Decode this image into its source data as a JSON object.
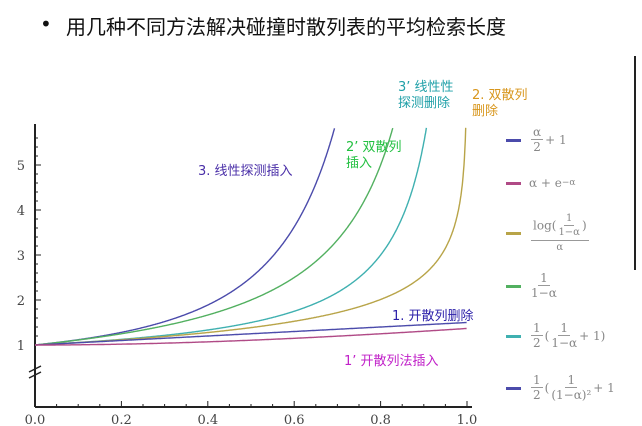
{
  "slide": {
    "bullet": "•",
    "heading": "用几种不同方法解决碰撞时散列表的平均检索长度"
  },
  "chart_data": {
    "type": "line",
    "title": "",
    "xlabel": "",
    "ylabel": "",
    "xlim": [
      0,
      1.0
    ],
    "ylim": [
      1,
      5.9
    ],
    "x_ticks": [
      "0.0",
      "0.2",
      "0.4",
      "0.6",
      "0.8",
      "1.0"
    ],
    "y_ticks": [
      "1",
      "2",
      "3",
      "4",
      "5"
    ],
    "series": [
      {
        "name": "3. 线性探测插入",
        "formula": "(1/2)(1/(1-α)^2+1)",
        "color": "#4b4bab"
      },
      {
        "name": "3’ 线性探测删除",
        "formula": "(1/2)(1/(1-α)+1)",
        "color": "#3fb0b0"
      },
      {
        "name": "2’ 双散列插入",
        "formula": "1/(1-α)",
        "color": "#52b060"
      },
      {
        "name": "2. 双散列删除",
        "formula": "log(1/(1-α))/α",
        "color": "#b8a448"
      },
      {
        "name": "1. 开散列删除",
        "formula": "α/2+1",
        "color": "#4b4bab"
      },
      {
        "name": "1’ 开散列法插入",
        "formula": "α+e^-α",
        "color": "#b04a86"
      }
    ],
    "legend": "right",
    "legend_entries": [
      {
        "color": "#4b4bab",
        "num": "α",
        "den": "2",
        "rest": "+ 1"
      },
      {
        "color": "#b04a86",
        "text": "α + e",
        "sup": "−α"
      },
      {
        "color": "#b8a448",
        "text": "log",
        "inner_num": "1",
        "inner_den": "1−α",
        "den": "α"
      },
      {
        "color": "#52b060",
        "num": "1",
        "den": "1−α"
      },
      {
        "color": "#3fb0b0",
        "half_num": "1",
        "half_den": "2",
        "num": "1",
        "den": "1−α",
        "rest": "+ 1"
      },
      {
        "color": "#4b4bab",
        "half_num": "1",
        "half_den": "2",
        "num": "1",
        "den": "(1−α)²",
        "rest": "+ 1"
      }
    ],
    "annotations": [
      {
        "text1": "3. 线性探测插入",
        "text2": "",
        "color": "#4a2fa8"
      },
      {
        "text1": "2’ 双散列",
        "text2": "插入",
        "color": "#22c040"
      },
      {
        "text1": "3’ 线性性",
        "text2": "探测删除",
        "color": "#1fa0a8"
      },
      {
        "text1": "2. 双散列",
        "text2": "删除",
        "color": "#d8961c"
      },
      {
        "text1": "1. 开散列删除",
        "text2": "",
        "color": "#2a1ea8"
      },
      {
        "text1": "1’ 开散列法插入",
        "text2": "",
        "color": "#c020c8"
      }
    ]
  }
}
